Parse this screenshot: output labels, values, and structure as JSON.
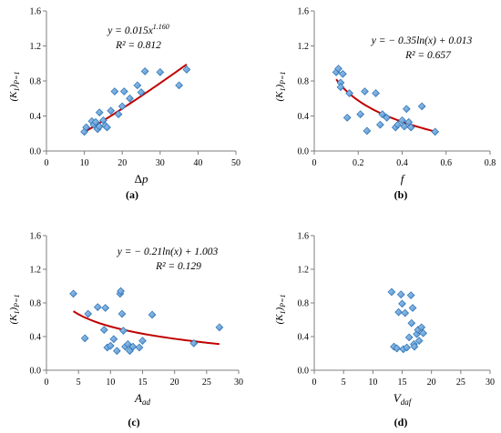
{
  "colors": {
    "marker_fill": "#5B9BD5",
    "marker_stroke": "#2E75B6",
    "fit_line": "#C00000",
    "axis": "#7f7f7f"
  },
  "chart_data": [
    {
      "id": "a",
      "type": "scatter",
      "panel_label": "(a)",
      "xlabel": "Δp",
      "ylabel": "(K1)P=1",
      "xlim": [
        0,
        50
      ],
      "ylim": [
        0,
        1.6
      ],
      "xticks": [
        "0",
        "10",
        "20",
        "30",
        "40",
        "50"
      ],
      "yticks": [
        "0.0",
        "0.4",
        "0.8",
        "1.2",
        "1.6"
      ],
      "equation": "y = 0.015x^1.160",
      "r2": "R² = 0.812",
      "fit": {
        "kind": "power",
        "a": 0.015,
        "b": 1.16,
        "x_range": [
          10,
          37
        ]
      },
      "points": [
        [
          10,
          0.22
        ],
        [
          10.5,
          0.27
        ],
        [
          12,
          0.34
        ],
        [
          12.5,
          0.3
        ],
        [
          13,
          0.33
        ],
        [
          13.5,
          0.25
        ],
        [
          14,
          0.28
        ],
        [
          14,
          0.44
        ],
        [
          15,
          0.35
        ],
        [
          15.5,
          0.29
        ],
        [
          16,
          0.27
        ],
        [
          17,
          0.46
        ],
        [
          18,
          0.68
        ],
        [
          19,
          0.42
        ],
        [
          20,
          0.51
        ],
        [
          20.5,
          0.68
        ],
        [
          22,
          0.6
        ],
        [
          24,
          0.75
        ],
        [
          25,
          0.67
        ],
        [
          26,
          0.91
        ],
        [
          30,
          0.9
        ],
        [
          35,
          0.75
        ],
        [
          37,
          0.93
        ]
      ]
    },
    {
      "id": "b",
      "type": "scatter",
      "panel_label": "(b)",
      "xlabel": "f",
      "ylabel": "(K1)P=1",
      "xlim": [
        0,
        0.8
      ],
      "ylim": [
        0,
        1.6
      ],
      "xticks": [
        "0",
        "0.2",
        "0.4",
        "0.6",
        "0.8"
      ],
      "yticks": [
        "0.0",
        "0.4",
        "0.8",
        "1.2",
        "1.6"
      ],
      "equation": "y = − 0.35ln(x) + 0.013",
      "r2": "R² = 0.657",
      "fit": {
        "kind": "log",
        "a": -0.35,
        "b": 0.013,
        "x_range": [
          0.1,
          0.55
        ]
      },
      "points": [
        [
          0.1,
          0.9
        ],
        [
          0.11,
          0.94
        ],
        [
          0.12,
          0.78
        ],
        [
          0.13,
          0.88
        ],
        [
          0.12,
          0.73
        ],
        [
          0.15,
          0.38
        ],
        [
          0.16,
          0.66
        ],
        [
          0.21,
          0.42
        ],
        [
          0.23,
          0.68
        ],
        [
          0.24,
          0.23
        ],
        [
          0.28,
          0.66
        ],
        [
          0.3,
          0.3
        ],
        [
          0.31,
          0.42
        ],
        [
          0.33,
          0.38
        ],
        [
          0.37,
          0.27
        ],
        [
          0.38,
          0.3
        ],
        [
          0.4,
          0.35
        ],
        [
          0.41,
          0.28
        ],
        [
          0.42,
          0.48
        ],
        [
          0.43,
          0.33
        ],
        [
          0.44,
          0.27
        ],
        [
          0.49,
          0.51
        ],
        [
          0.55,
          0.22
        ]
      ]
    },
    {
      "id": "c",
      "type": "scatter",
      "panel_label": "(c)",
      "xlabel": "Aad",
      "ylabel": "(K1)P=1",
      "xlim": [
        0,
        30
      ],
      "ylim": [
        0,
        1.6
      ],
      "xticks": [
        "0",
        "5",
        "10",
        "15",
        "20",
        "25",
        "30"
      ],
      "yticks": [
        "0.0",
        "0.4",
        "0.8",
        "1.2",
        "1.6"
      ],
      "equation": "y = − 0.21ln(x) + 1.003",
      "r2": "R² = 0.129",
      "fit": {
        "kind": "log",
        "a": -0.21,
        "b": 1.003,
        "x_range": [
          4.2,
          27
        ]
      },
      "points": [
        [
          4.2,
          0.91
        ],
        [
          6,
          0.38
        ],
        [
          6.5,
          0.67
        ],
        [
          8,
          0.75
        ],
        [
          9,
          0.48
        ],
        [
          9.2,
          0.74
        ],
        [
          9.5,
          0.27
        ],
        [
          10,
          0.29
        ],
        [
          10.5,
          0.37
        ],
        [
          11,
          0.23
        ],
        [
          11.5,
          0.91
        ],
        [
          11.6,
          0.94
        ],
        [
          11.8,
          0.67
        ],
        [
          12,
          0.47
        ],
        [
          12.3,
          0.28
        ],
        [
          12.7,
          0.31
        ],
        [
          13,
          0.23
        ],
        [
          13.5,
          0.28
        ],
        [
          14.5,
          0.27
        ],
        [
          15,
          0.35
        ],
        [
          16.5,
          0.66
        ],
        [
          23,
          0.32
        ],
        [
          27,
          0.51
        ]
      ]
    },
    {
      "id": "d",
      "type": "scatter",
      "panel_label": "(d)",
      "xlabel": "Vdaf",
      "ylabel": "(K1)P=1",
      "xlim": [
        0,
        30
      ],
      "ylim": [
        0,
        1.6
      ],
      "xticks": [
        "0",
        "5",
        "10",
        "15",
        "20",
        "25",
        "30"
      ],
      "yticks": [
        "0.0",
        "0.4",
        "0.8",
        "1.2",
        "1.6"
      ],
      "equation": "",
      "r2": "",
      "fit": null,
      "points": [
        [
          13.2,
          0.93
        ],
        [
          13.6,
          0.28
        ],
        [
          14.1,
          0.26
        ],
        [
          14.4,
          0.69
        ],
        [
          14.8,
          0.9
        ],
        [
          15.0,
          0.79
        ],
        [
          15.2,
          0.25
        ],
        [
          15.5,
          0.68
        ],
        [
          15.8,
          0.27
        ],
        [
          16.2,
          0.39
        ],
        [
          16.5,
          0.89
        ],
        [
          16.6,
          0.56
        ],
        [
          16.8,
          0.74
        ],
        [
          17.0,
          0.31
        ],
        [
          17.1,
          0.28
        ],
        [
          17.5,
          0.43
        ],
        [
          17.7,
          0.48
        ],
        [
          17.9,
          0.35
        ],
        [
          18.3,
          0.51
        ],
        [
          18.6,
          0.44
        ]
      ]
    }
  ]
}
